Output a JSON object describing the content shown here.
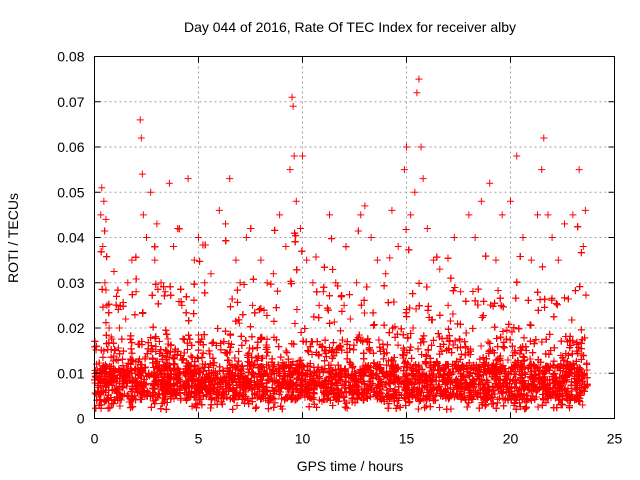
{
  "chart_data": {
    "type": "scatter",
    "title": "Day 044 of 2016, Rate Of TEC Index for receiver alby",
    "xlabel": "GPS time / hours",
    "ylabel": "ROTI / TECUs",
    "xlim": [
      0,
      25
    ],
    "ylim": [
      0,
      0.08
    ],
    "xticks": [
      0,
      5,
      10,
      15,
      20,
      25
    ],
    "xtick_labels": [
      "0",
      "5",
      "10",
      "15",
      "20",
      "25"
    ],
    "yticks": [
      0,
      0.01,
      0.02,
      0.03,
      0.04,
      0.05,
      0.06,
      0.07,
      0.08
    ],
    "ytick_labels": [
      "0",
      "0.01",
      "0.02",
      "0.03",
      "0.04",
      "0.05",
      "0.06",
      "0.07",
      "0.08"
    ],
    "grid": true,
    "marker": "plus",
    "color": "#ff0000",
    "series": [
      {
        "name": "ROTI",
        "x": [
          0.1,
          0.3,
          0.35,
          0.4,
          0.45,
          0.5,
          0.55,
          0.6,
          0.7,
          0.8,
          1.0,
          1.2,
          1.5,
          1.6,
          1.8,
          2.0,
          2.2,
          2.25,
          2.3,
          2.35,
          2.5,
          2.7,
          2.9,
          3.0,
          3.2,
          3.4,
          3.6,
          3.8,
          4.0,
          4.2,
          4.5,
          4.8,
          5.0,
          5.3,
          5.6,
          6.0,
          6.3,
          6.5,
          6.8,
          7.0,
          7.3,
          7.6,
          8.0,
          8.3,
          8.6,
          8.9,
          9.2,
          9.4,
          9.5,
          9.55,
          9.6,
          9.7,
          9.9,
          10.0,
          10.2,
          10.5,
          10.8,
          11.0,
          11.3,
          11.6,
          12.0,
          12.3,
          12.6,
          12.8,
          13.0,
          13.3,
          13.6,
          14.0,
          14.3,
          14.6,
          14.9,
          15.0,
          15.2,
          15.4,
          15.5,
          15.6,
          15.7,
          15.8,
          16.0,
          16.3,
          16.6,
          17.0,
          17.3,
          17.6,
          18.0,
          18.3,
          18.6,
          19.0,
          19.3,
          19.6,
          20.0,
          20.3,
          20.6,
          21.0,
          21.3,
          21.5,
          21.6,
          21.8,
          22.0,
          22.3,
          22.6,
          23.0,
          23.3,
          23.5,
          23.6
        ],
        "y": [
          0.012,
          0.045,
          0.051,
          0.038,
          0.048,
          0.03,
          0.044,
          0.025,
          0.02,
          0.018,
          0.015,
          0.02,
          0.022,
          0.03,
          0.035,
          0.028,
          0.066,
          0.062,
          0.054,
          0.045,
          0.04,
          0.05,
          0.035,
          0.043,
          0.03,
          0.028,
          0.052,
          0.038,
          0.042,
          0.025,
          0.053,
          0.035,
          0.04,
          0.03,
          0.032,
          0.046,
          0.043,
          0.053,
          0.035,
          0.03,
          0.04,
          0.025,
          0.035,
          0.03,
          0.032,
          0.045,
          0.038,
          0.055,
          0.071,
          0.069,
          0.058,
          0.048,
          0.042,
          0.058,
          0.035,
          0.03,
          0.025,
          0.028,
          0.045,
          0.03,
          0.025,
          0.022,
          0.03,
          0.045,
          0.047,
          0.04,
          0.035,
          0.032,
          0.046,
          0.038,
          0.055,
          0.06,
          0.045,
          0.05,
          0.072,
          0.075,
          0.06,
          0.053,
          0.042,
          0.035,
          0.033,
          0.025,
          0.04,
          0.028,
          0.045,
          0.04,
          0.048,
          0.052,
          0.035,
          0.045,
          0.048,
          0.058,
          0.04,
          0.035,
          0.045,
          0.055,
          0.062,
          0.045,
          0.04,
          0.035,
          0.043,
          0.045,
          0.055,
          0.038,
          0.046
        ]
      }
    ]
  }
}
